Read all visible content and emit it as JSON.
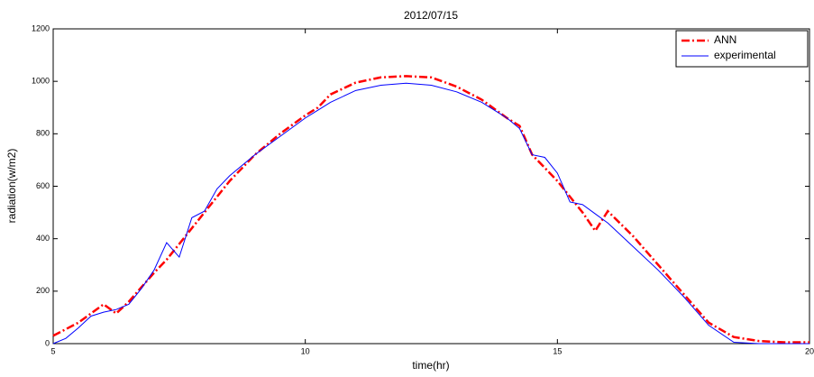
{
  "chart_data": {
    "type": "line",
    "title": "2012/07/15",
    "x_label": "time(hr)",
    "y_label": "radiation(w/m2)",
    "x": [
      5,
      5.25,
      5.5,
      5.75,
      6,
      6.25,
      6.5,
      6.75,
      7,
      7.25,
      7.5,
      7.75,
      8,
      8.25,
      8.5,
      9,
      9.5,
      10,
      10.25,
      10.5,
      11,
      11.5,
      12,
      12.5,
      13,
      13.5,
      14,
      14.25,
      14.5,
      14.75,
      15,
      15.25,
      15.5,
      15.75,
      16,
      16.5,
      17,
      17.5,
      18,
      18.5,
      19,
      19.5,
      20
    ],
    "series": [
      {
        "name": "ANN",
        "color": "#ff0000",
        "dash": "dashdot",
        "values": [
          30,
          55,
          80,
          115,
          150,
          115,
          160,
          215,
          270,
          320,
          380,
          440,
          500,
          560,
          620,
          720,
          800,
          870,
          900,
          950,
          995,
          1015,
          1020,
          1015,
          980,
          930,
          860,
          830,
          720,
          670,
          620,
          560,
          500,
          430,
          505,
          410,
          300,
          190,
          80,
          25,
          10,
          5,
          5
        ]
      },
      {
        "name": "experimental",
        "color": "#0000ff",
        "dash": "solid",
        "values": [
          0,
          20,
          60,
          105,
          120,
          130,
          150,
          210,
          280,
          385,
          330,
          480,
          505,
          590,
          640,
          720,
          790,
          860,
          890,
          920,
          965,
          985,
          993,
          985,
          960,
          920,
          860,
          820,
          720,
          710,
          650,
          540,
          530,
          495,
          460,
          370,
          280,
          180,
          70,
          5,
          0,
          0,
          0
        ]
      }
    ],
    "xlim": [
      5,
      20
    ],
    "xticks": [
      5,
      10,
      15,
      20
    ],
    "ylim": [
      0,
      1200
    ],
    "yticks": [
      0,
      200,
      400,
      600,
      800,
      1000,
      1200
    ],
    "grid": false,
    "legend": "upper right"
  }
}
